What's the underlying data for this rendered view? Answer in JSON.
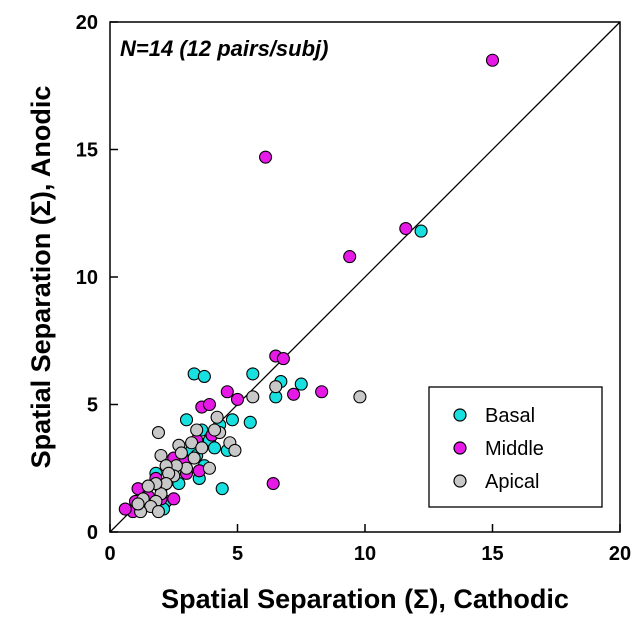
{
  "chart_data": {
    "type": "scatter",
    "title": "",
    "annotation": "N=14 (12 pairs/subj)",
    "xlabel": "Spatial Separation (Σ), Cathodic",
    "ylabel": "Spatial Separation (Σ), Anodic",
    "xlim": [
      0,
      20
    ],
    "ylim": [
      0,
      20
    ],
    "xticks": [
      "0",
      "5",
      "10",
      "15",
      "20"
    ],
    "yticks": [
      "0",
      "5",
      "10",
      "15",
      "20"
    ],
    "reference_line": "y = x",
    "grid": false,
    "legend_position": "bottom-right",
    "series": [
      {
        "name": "Basal",
        "color": "#19e0e0",
        "points": [
          [
            3.3,
            6.2
          ],
          [
            3.7,
            6.1
          ],
          [
            5.6,
            6.2
          ],
          [
            6.7,
            5.9
          ],
          [
            7.5,
            5.8
          ],
          [
            6.5,
            5.3
          ],
          [
            12.2,
            11.8
          ],
          [
            5.5,
            4.3
          ],
          [
            4.4,
            1.7
          ],
          [
            3.0,
            4.4
          ],
          [
            4.8,
            4.4
          ],
          [
            4.3,
            4.2
          ],
          [
            3.6,
            4.0
          ],
          [
            3.9,
            3.6
          ],
          [
            4.1,
            3.3
          ],
          [
            3.2,
            3.2
          ],
          [
            3.5,
            2.1
          ],
          [
            3.7,
            2.6
          ],
          [
            2.8,
            2.9
          ],
          [
            2.4,
            2.2
          ],
          [
            2.0,
            1.7
          ],
          [
            2.2,
            1.2
          ],
          [
            1.8,
            2.3
          ],
          [
            2.7,
            1.9
          ],
          [
            1.3,
            1.2
          ],
          [
            1.5,
            1.8
          ],
          [
            2.1,
            0.9
          ],
          [
            1.0,
            0.9
          ],
          [
            4.6,
            3.2
          ],
          [
            3.4,
            3.0
          ]
        ]
      },
      {
        "name": "Middle",
        "color": "#e619e6",
        "points": [
          [
            15.0,
            18.5
          ],
          [
            6.1,
            14.7
          ],
          [
            11.6,
            11.9
          ],
          [
            9.4,
            10.8
          ],
          [
            6.5,
            6.9
          ],
          [
            6.8,
            6.8
          ],
          [
            7.2,
            5.4
          ],
          [
            8.3,
            5.5
          ],
          [
            4.6,
            5.5
          ],
          [
            5.0,
            5.2
          ],
          [
            6.4,
            1.9
          ],
          [
            3.6,
            4.9
          ],
          [
            3.9,
            5.0
          ],
          [
            3.4,
            3.6
          ],
          [
            3.5,
            2.4
          ],
          [
            2.9,
            2.8
          ],
          [
            3.0,
            2.3
          ],
          [
            2.5,
            2.9
          ],
          [
            2.2,
            1.9
          ],
          [
            2.5,
            1.3
          ],
          [
            2.0,
            1.3
          ],
          [
            1.5,
            1.4
          ],
          [
            1.1,
            1.7
          ],
          [
            1.0,
            1.2
          ],
          [
            0.9,
            0.8
          ],
          [
            0.6,
            0.9
          ],
          [
            1.8,
            2.1
          ],
          [
            4.0,
            3.8
          ]
        ]
      },
      {
        "name": "Apical",
        "color": "#c8c8c8",
        "points": [
          [
            9.8,
            5.3
          ],
          [
            6.5,
            5.7
          ],
          [
            5.6,
            5.3
          ],
          [
            4.2,
            4.5
          ],
          [
            4.3,
            3.9
          ],
          [
            4.7,
            3.5
          ],
          [
            4.9,
            3.2
          ],
          [
            4.1,
            4.0
          ],
          [
            3.4,
            4.0
          ],
          [
            3.2,
            3.5
          ],
          [
            2.7,
            3.4
          ],
          [
            3.3,
            2.9
          ],
          [
            3.9,
            2.5
          ],
          [
            3.0,
            2.5
          ],
          [
            2.6,
            2.6
          ],
          [
            2.5,
            2.2
          ],
          [
            1.9,
            3.9
          ],
          [
            2.0,
            3.0
          ],
          [
            2.2,
            2.6
          ],
          [
            2.3,
            2.3
          ],
          [
            2.2,
            1.9
          ],
          [
            2.0,
            1.5
          ],
          [
            1.8,
            1.9
          ],
          [
            1.5,
            1.8
          ],
          [
            1.8,
            1.2
          ],
          [
            1.3,
            1.3
          ],
          [
            1.6,
            1.0
          ],
          [
            1.2,
            0.8
          ],
          [
            1.9,
            0.8
          ],
          [
            1.1,
            1.1
          ],
          [
            2.8,
            3.1
          ],
          [
            3.6,
            3.3
          ]
        ]
      }
    ]
  }
}
